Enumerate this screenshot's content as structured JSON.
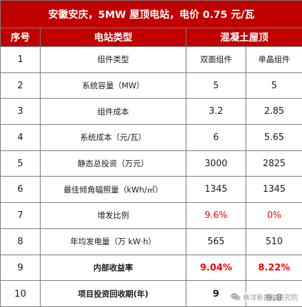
{
  "title": "安徽安庆，5MW 屋顶电站，电价 0.75 元/瓦",
  "header": {
    "col_index": "序号",
    "col_type": "电站类型",
    "col_roof": "混凝土屋顶"
  },
  "rows": [
    {
      "index": "1",
      "label": "组件类型",
      "a": "双面组件",
      "b": "单晶组件"
    },
    {
      "index": "2",
      "label": "系统容量（MW）",
      "a": "5",
      "b": "5"
    },
    {
      "index": "3",
      "label": "组件成本",
      "a": "3.2",
      "b": "2.85"
    },
    {
      "index": "4",
      "label": "系统成本（元/瓦）",
      "a": "6",
      "b": "5.65"
    },
    {
      "index": "5",
      "label": "静态总投资（万元）",
      "a": "3000",
      "b": "2825"
    },
    {
      "index": "6",
      "label": "最佳倾角辐照量（kWh/㎡）",
      "a": "1345",
      "b": "1345"
    },
    {
      "index": "7",
      "label": "增发比例",
      "a": "9.6%",
      "b": "0%"
    },
    {
      "index": "8",
      "label": "年均发电量（万 kW·h）",
      "a": "565",
      "b": "510"
    },
    {
      "index": "9",
      "label": "内部收益率",
      "a": "9.04%",
      "b": "8.22%"
    },
    {
      "index": "10",
      "label": "项目投资回收期(年)",
      "a": "9",
      "b": "9.8"
    }
  ],
  "watermark": "林洋新能源研究院",
  "colors": {
    "header_bg": "#c00000",
    "header_text": "#ffffff",
    "highlight": "#ff0000",
    "border": "#7a7a7a"
  }
}
